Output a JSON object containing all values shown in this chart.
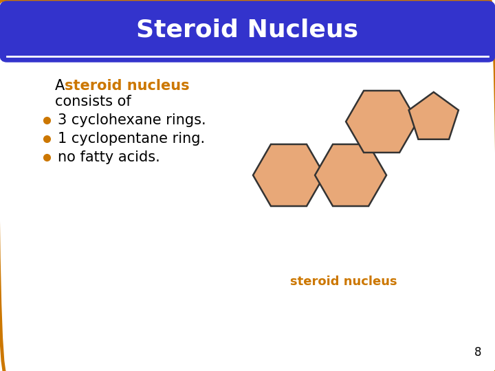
{
  "title": "Steroid Nucleus",
  "title_color": "#FFFFFF",
  "title_bg_color": "#3333CC",
  "slide_bg_color": "#FFFFFF",
  "border_color": "#CC7700",
  "text_intro_normal": "A ",
  "text_intro_bold": "steroid nucleus",
  "text_intro_bold_color": "#CC7700",
  "text_intro_end": "\nconsists of",
  "bullet_color": "#CC7700",
  "bullets": [
    "3 cyclohexane rings.",
    "1 cyclopentane ring.",
    "no fatty acids."
  ],
  "caption": "steroid nucleus",
  "caption_color": "#CC7700",
  "page_number": "8",
  "ring_fill_color": "#E8A878",
  "ring_edge_color": "#333333"
}
